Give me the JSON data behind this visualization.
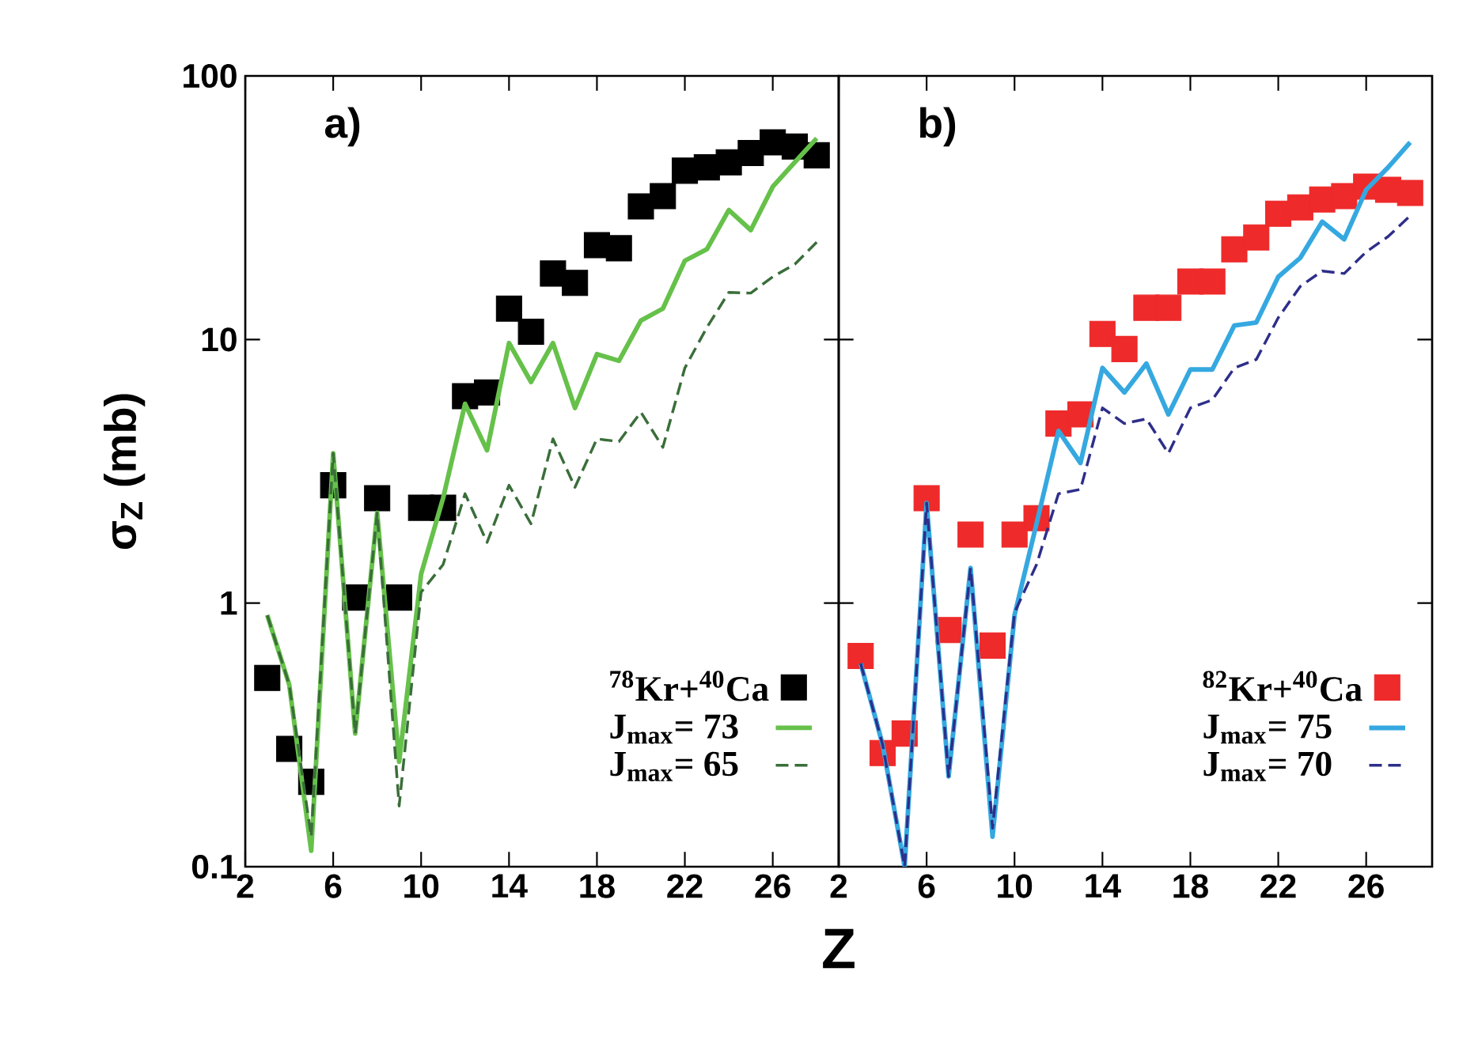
{
  "chart_data": [
    {
      "type": "line",
      "ylabel": "σ$_{Z}$  (mb)",
      "xlabel": "Z",
      "annotations": [
        "a)"
      ],
      "log": "y",
      "xlim": [
        2,
        29
      ],
      "ylim": [
        0.1,
        100
      ],
      "xticks": [
        2,
        6,
        10,
        14,
        18,
        22,
        26
      ],
      "yticks": [
        0.1,
        1,
        10,
        100
      ],
      "legend": "bottom right",
      "x": [
        3,
        4,
        5,
        6,
        7,
        8,
        9,
        10,
        11,
        12,
        13,
        14,
        15,
        16,
        17,
        18,
        19,
        20,
        21,
        22,
        23,
        24,
        25,
        26,
        27,
        28
      ],
      "series": [
        {
          "name": "$^{78}$Kr+$^{40}$Ca",
          "type": "scatter",
          "marker": "square",
          "color": "#000000",
          "values": [
            0.52,
            0.28,
            0.21,
            2.8,
            1.05,
            2.5,
            1.05,
            2.3,
            2.3,
            6.1,
            6.3,
            13.1,
            10.7,
            17.8,
            16.4,
            22.8,
            22.2,
            32,
            35,
            43.7,
            45,
            47,
            51,
            56,
            54,
            50
          ]
        },
        {
          "name": "J$_{max}$= 73",
          "type": "line",
          "line_style": "solid",
          "color": "#66c14a",
          "values": [
            0.9,
            0.49,
            0.115,
            3.7,
            0.32,
            2.2,
            0.25,
            1.29,
            2.5,
            5.7,
            3.8,
            9.7,
            6.9,
            9.7,
            5.5,
            8.8,
            8.3,
            11.8,
            13.1,
            19.9,
            22,
            31,
            26,
            38,
            47,
            58
          ]
        },
        {
          "name": "J$_{max}$= 65",
          "type": "line",
          "line_style": "dashed",
          "color": "#3a6e3a",
          "values": [
            0.9,
            0.49,
            0.13,
            3.7,
            0.32,
            2.2,
            0.17,
            1.1,
            1.4,
            2.6,
            1.7,
            2.8,
            2.0,
            4.2,
            2.75,
            4.2,
            4.1,
            5.3,
            3.9,
            7.8,
            11.1,
            15.1,
            15,
            17.3,
            19.3,
            23.4
          ]
        }
      ]
    },
    {
      "type": "line",
      "annotations": [
        "b)"
      ],
      "log": "y",
      "xlim": [
        2,
        29
      ],
      "ylim": [
        0.1,
        100
      ],
      "xticks": [
        2,
        6,
        10,
        14,
        18,
        22,
        26
      ],
      "yticks": [
        0.1,
        1,
        10,
        100
      ],
      "tick_labels": "x",
      "legend": "bottom right",
      "x": [
        3,
        4,
        5,
        6,
        7,
        8,
        9,
        10,
        11,
        12,
        13,
        14,
        15,
        16,
        17,
        18,
        19,
        20,
        21,
        22,
        23,
        24,
        25,
        26,
        27,
        28
      ],
      "series": [
        {
          "name": "$^{82}$Kr+$^{40}$Ca",
          "type": "scatter",
          "marker": "square",
          "color": "#ee2a2a",
          "values": [
            0.63,
            0.27,
            0.32,
            2.5,
            0.79,
            1.82,
            0.69,
            1.82,
            2.1,
            4.8,
            5.2,
            10.5,
            9.2,
            13.2,
            13.2,
            16.6,
            16.6,
            22,
            24.4,
            30,
            31.7,
            34,
            35,
            38,
            37,
            36
          ]
        },
        {
          "name": "J$_{max}$= 75",
          "type": "line",
          "line_style": "solid",
          "color": "#35a8e0",
          "values": [
            0.59,
            0.29,
            0.1,
            2.4,
            0.22,
            1.36,
            0.13,
            0.9,
            2.0,
            4.5,
            3.4,
            7.8,
            6.3,
            8.1,
            5.2,
            7.7,
            7.7,
            11.3,
            11.6,
            17.3,
            20.4,
            28,
            24,
            37,
            45,
            56
          ]
        },
        {
          "name": "J$_{max}$= 70",
          "type": "line",
          "line_style": "dashed",
          "color": "#2e2e8a",
          "values": [
            0.59,
            0.29,
            0.1,
            2.4,
            0.22,
            1.36,
            0.14,
            0.92,
            1.4,
            2.6,
            2.7,
            5.5,
            4.8,
            5.0,
            3.7,
            5.5,
            5.9,
            7.8,
            8.4,
            12.1,
            15.9,
            18.2,
            17.8,
            21.5,
            24.6,
            29.5
          ]
        }
      ]
    }
  ]
}
